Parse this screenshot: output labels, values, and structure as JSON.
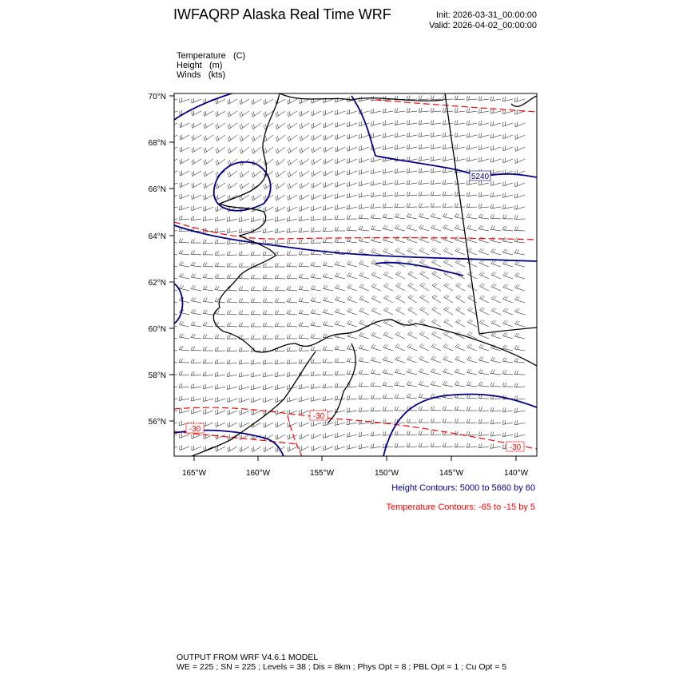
{
  "header": {
    "title": "IWFAQRP Alaska Real Time WRF",
    "init": "Init: 2026-03-31_00:00:00",
    "valid": "Valid: 2026-04-02_00:00:00"
  },
  "fields": [
    {
      "name": "Temperature",
      "unit": "(C)"
    },
    {
      "name": "Height",
      "unit": "(m)"
    },
    {
      "name": "Winds",
      "unit": "(kts)"
    }
  ],
  "map": {
    "lat_labels": [
      "70°N",
      "68°N",
      "66°N",
      "64°N",
      "62°N",
      "60°N",
      "58°N",
      "56°N"
    ],
    "lon_labels": [
      "165°W",
      "160°W",
      "155°W",
      "150°W",
      "145°W",
      "140°W"
    ],
    "height_contour_labels": [
      "5240"
    ],
    "temperature_contour_labels": [
      "-30",
      "-30",
      "-30"
    ],
    "colors": {
      "height": "#00008b",
      "temperature": "#ff0000",
      "coast": "#000000",
      "barbs": "#000000"
    }
  },
  "legend": {
    "height": "Height Contours: 5000 to 5660 by 60",
    "temperature": "Temperature Contours: -65 to -15 by 5"
  },
  "footer": {
    "line1": "OUTPUT FROM WRF V4.6.1 MODEL",
    "line2": "WE = 225 ; SN = 225 ; Levels = 38 ; Dis = 8km ; Phys Opt = 8 ; PBL Opt = 1 ; Cu Opt = 5"
  }
}
